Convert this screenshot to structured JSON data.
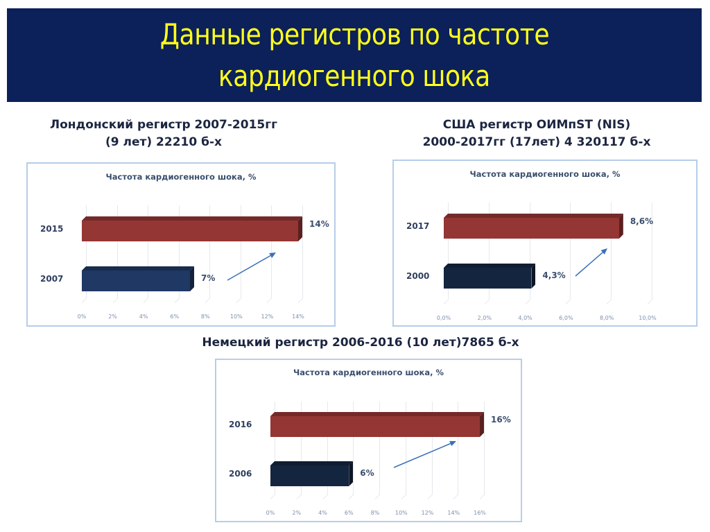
{
  "slide": {
    "title_lines": [
      "Данные регистров по частоте",
      "кардиогенного шока"
    ],
    "colors": {
      "banner_bg": "#0C205A",
      "title_text": "#FFFF1A",
      "bar_red": "#943634",
      "bar_blue_london": "#1F3864",
      "bar_blue_dark": "#142540",
      "arrow": "#3A6FB8"
    }
  },
  "panels": [
    {
      "heading_lines": [
        "Лондонский регистр 2007-2015гг",
        "(9 лет) 22210 б-х"
      ]
    },
    {
      "heading_lines": [
        "США регистр ОИМпST (NIS)",
        "2000-2017гг (17лет) 4 320117 б-х"
      ]
    },
    {
      "heading_lines": [
        "Немецкий регистр 2006-2016 (10 лет)7865 б-х"
      ]
    }
  ],
  "chart_data": [
    {
      "type": "bar",
      "orientation": "horizontal",
      "title": "Частота кардиогенного шока, %",
      "categories": [
        "2015",
        "2007"
      ],
      "values": [
        14,
        7
      ],
      "value_labels": [
        "14%",
        "7%"
      ],
      "bar_colors": [
        "#943634",
        "#1F3864"
      ],
      "x_ticks": [
        "0%",
        "2%",
        "4%",
        "6%",
        "8%",
        "10%",
        "12%",
        "14%"
      ],
      "xlim": [
        0,
        14
      ],
      "grid": true,
      "style": "3d",
      "annotation": "arrow from 2007 bar toward 2015 bar (increase)"
    },
    {
      "type": "bar",
      "orientation": "horizontal",
      "title": "Частота кардиогенного шока, %",
      "categories": [
        "2017",
        "2000"
      ],
      "values": [
        8.6,
        4.3
      ],
      "value_labels": [
        "8,6%",
        "4,3%"
      ],
      "bar_colors": [
        "#943634",
        "#142540"
      ],
      "x_ticks": [
        "0,0%",
        "2,0%",
        "4,0%",
        "6,0%",
        "8,0%",
        "10,0%"
      ],
      "xlim": [
        0,
        10
      ],
      "grid": true,
      "style": "3d",
      "annotation": "arrow from 2000 bar toward 2017 bar (increase)"
    },
    {
      "type": "bar",
      "orientation": "horizontal",
      "title": "Частота кардиогенного шока, %",
      "categories": [
        "2016",
        "2006"
      ],
      "values": [
        16,
        6
      ],
      "value_labels": [
        "16%",
        "6%"
      ],
      "bar_colors": [
        "#943634",
        "#142540"
      ],
      "x_ticks": [
        "0%",
        "2%",
        "4%",
        "6%",
        "8%",
        "10%",
        "12%",
        "14%",
        "16%"
      ],
      "xlim": [
        0,
        16
      ],
      "grid": true,
      "style": "3d",
      "annotation": "arrow from 2006 bar toward 2016 bar (increase)"
    }
  ]
}
